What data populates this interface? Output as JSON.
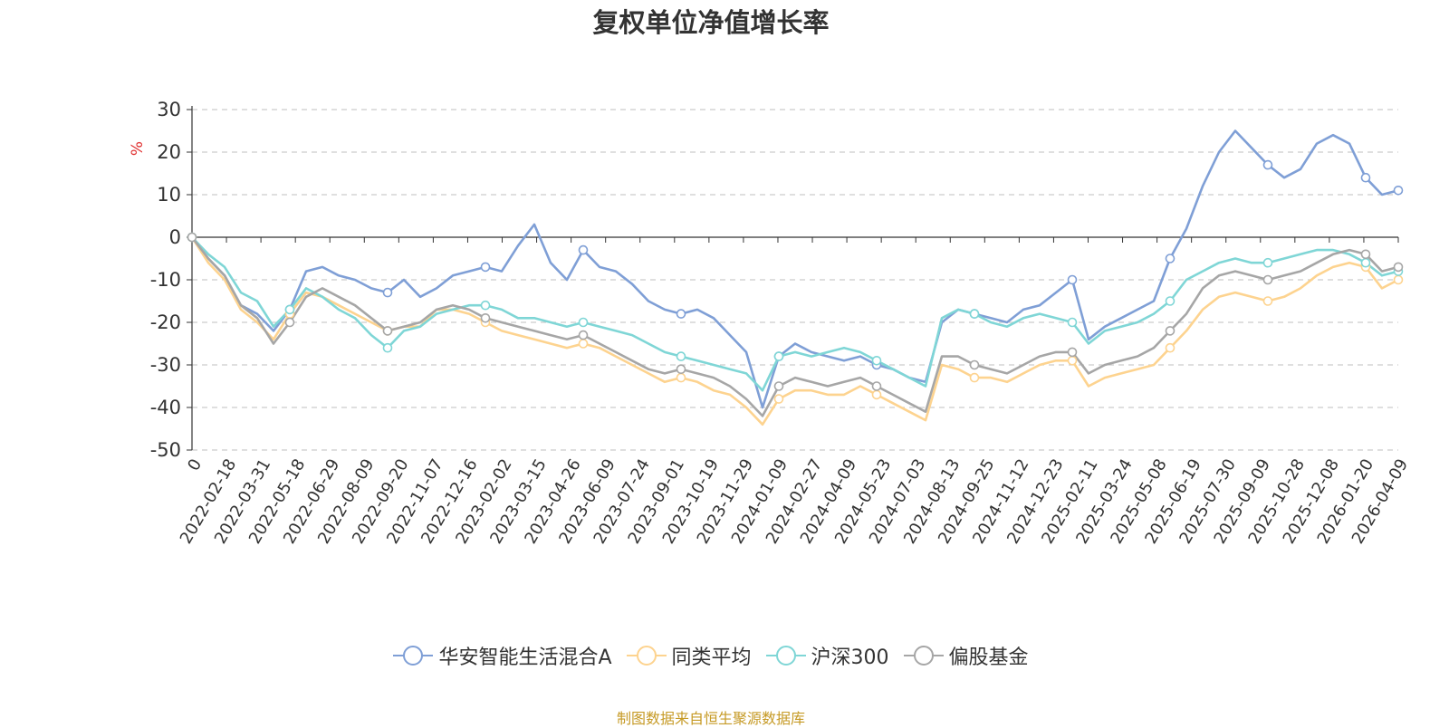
{
  "chart_data": {
    "type": "line",
    "title": "复权单位净值增长率",
    "ylabel": "%",
    "ylim": [
      -50,
      30
    ],
    "yticks": [
      30,
      20,
      10,
      0,
      -10,
      -20,
      -30,
      -40,
      -50
    ],
    "grid": true,
    "legend_position": "bottom",
    "x_tick_labels": [
      "0",
      "2022-02-18",
      "2022-03-31",
      "2022-05-18",
      "2022-06-29",
      "2022-08-09",
      "2022-09-20",
      "2022-11-07",
      "2022-12-16",
      "2023-02-02",
      "2023-03-15",
      "2023-04-26",
      "2023-06-09",
      "2023-07-24",
      "2023-09-01",
      "2023-10-19",
      "2023-11-29",
      "2024-01-09",
      "2024-02-27",
      "2024-04-09",
      "2024-05-23",
      "2024-07-03",
      "2024-08-13",
      "2024-09-25",
      "2024-11-12",
      "2024-12-23",
      "2025-02-11",
      "2025-03-24",
      "2025-05-08",
      "2025-06-19",
      "2025-07-30",
      "2025-09-09",
      "2025-10-28",
      "2025-12-08",
      "2026-01-20",
      "2026-04-09"
    ],
    "series": [
      {
        "name": "华安智能生活混合A",
        "color": "#7f9fd6",
        "values": [
          0,
          -5,
          -9,
          -16,
          -18,
          -22,
          -17,
          -8,
          -7,
          -9,
          -10,
          -12,
          -13,
          -10,
          -14,
          -12,
          -9,
          -8,
          -7,
          -8,
          -2,
          3,
          -6,
          -10,
          -3,
          -7,
          -8,
          -11,
          -15,
          -17,
          -18,
          -17,
          -19,
          -23,
          -27,
          -40,
          -28,
          -25,
          -27,
          -28,
          -29,
          -28,
          -30,
          -31,
          -33,
          -34,
          -20,
          -17,
          -18,
          -19,
          -20,
          -17,
          -16,
          -13,
          -10,
          -24,
          -21,
          -19,
          -17,
          -15,
          -5,
          2,
          12,
          20,
          25,
          21,
          17,
          14,
          16,
          22,
          24,
          22,
          14,
          10,
          11
        ]
      },
      {
        "name": "同类平均",
        "color": "#fdd38f",
        "values": [
          0,
          -6,
          -10,
          -17,
          -20,
          -24,
          -18,
          -13,
          -14,
          -16,
          -18,
          -20,
          -22,
          -21,
          -21,
          -17,
          -17,
          -18,
          -20,
          -22,
          -23,
          -24,
          -25,
          -26,
          -25,
          -26,
          -28,
          -30,
          -32,
          -34,
          -33,
          -34,
          -36,
          -37,
          -40,
          -44,
          -38,
          -36,
          -36,
          -37,
          -37,
          -35,
          -37,
          -39,
          -41,
          -43,
          -30,
          -31,
          -33,
          -33,
          -34,
          -32,
          -30,
          -29,
          -29,
          -35,
          -33,
          -32,
          -31,
          -30,
          -26,
          -22,
          -17,
          -14,
          -13,
          -14,
          -15,
          -14,
          -12,
          -9,
          -7,
          -6,
          -7,
          -12,
          -10
        ]
      },
      {
        "name": "沪深300",
        "color": "#7fd6d6",
        "values": [
          0,
          -4,
          -7,
          -13,
          -15,
          -21,
          -17,
          -12,
          -14,
          -17,
          -19,
          -23,
          -26,
          -22,
          -21,
          -18,
          -17,
          -16,
          -16,
          -17,
          -19,
          -19,
          -20,
          -21,
          -20,
          -21,
          -22,
          -23,
          -25,
          -27,
          -28,
          -29,
          -30,
          -31,
          -32,
          -36,
          -28,
          -27,
          -28,
          -27,
          -26,
          -27,
          -29,
          -31,
          -33,
          -35,
          -19,
          -17,
          -18,
          -20,
          -21,
          -19,
          -18,
          -19,
          -20,
          -25,
          -22,
          -21,
          -20,
          -18,
          -15,
          -10,
          -8,
          -6,
          -5,
          -6,
          -6,
          -5,
          -4,
          -3,
          -3,
          -4,
          -6,
          -9,
          -8
        ]
      },
      {
        "name": "偏股基金",
        "color": "#a6a6a6",
        "values": [
          0,
          -5,
          -9,
          -16,
          -19,
          -25,
          -20,
          -14,
          -12,
          -14,
          -16,
          -19,
          -22,
          -21,
          -20,
          -17,
          -16,
          -17,
          -19,
          -20,
          -21,
          -22,
          -23,
          -24,
          -23,
          -25,
          -27,
          -29,
          -31,
          -32,
          -31,
          -32,
          -33,
          -35,
          -38,
          -42,
          -35,
          -33,
          -34,
          -35,
          -34,
          -33,
          -35,
          -37,
          -39,
          -41,
          -28,
          -28,
          -30,
          -31,
          -32,
          -30,
          -28,
          -27,
          -27,
          -32,
          -30,
          -29,
          -28,
          -26,
          -22,
          -18,
          -12,
          -9,
          -8,
          -9,
          -10,
          -9,
          -8,
          -6,
          -4,
          -3,
          -4,
          -8,
          -7
        ]
      }
    ]
  },
  "legend": {
    "items": [
      "华安智能生活混合A",
      "同类平均",
      "沪深300",
      "偏股基金"
    ]
  },
  "source_note": "制图数据来自恒生聚源数据库"
}
